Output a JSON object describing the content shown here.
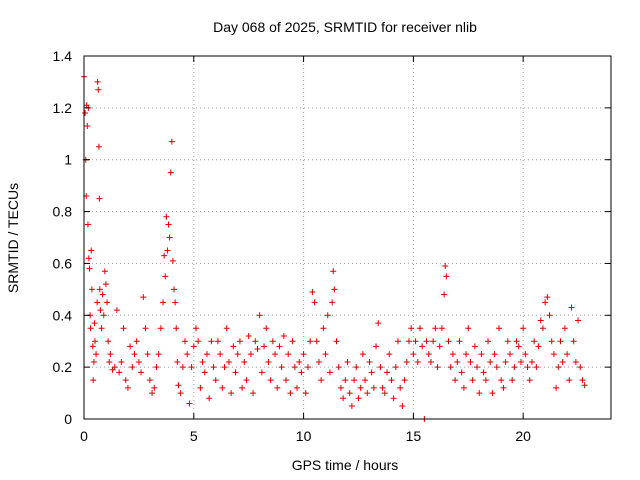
{
  "chart_data": {
    "type": "scatter",
    "title": "Day 068 of 2025, SRMTID for receiver nlib",
    "xlabel": "GPS time / hours",
    "ylabel": "SRMTID / TECUs",
    "xlim": [
      0,
      24
    ],
    "ylim": [
      0,
      1.4
    ],
    "xticks": [
      0,
      5,
      10,
      15,
      20
    ],
    "yticks": [
      0,
      0.2,
      0.4,
      0.6,
      0.8,
      1,
      1.2,
      1.4
    ],
    "xtick_labels": [
      "0",
      "5",
      "10",
      "15",
      "20"
    ],
    "ytick_labels": [
      "0",
      "0.2",
      "0.4",
      "0.6",
      "0.8",
      "1",
      "1.2",
      "1.4"
    ],
    "grid": true,
    "marker": "+",
    "series": [
      {
        "name": "SRMTID",
        "color": "#e00000",
        "points": [
          [
            0.0,
            1.32
          ],
          [
            0.05,
            1.18
          ],
          [
            0.08,
            1.0
          ],
          [
            0.1,
            0.86
          ],
          [
            0.12,
            1.21
          ],
          [
            0.15,
            1.13
          ],
          [
            0.18,
            0.75
          ],
          [
            0.2,
            1.2
          ],
          [
            0.22,
            0.62
          ],
          [
            0.25,
            0.58
          ],
          [
            0.28,
            0.4
          ],
          [
            0.3,
            0.35
          ],
          [
            0.33,
            0.65
          ],
          [
            0.36,
            0.5
          ],
          [
            0.4,
            0.28
          ],
          [
            0.42,
            0.15
          ],
          [
            0.45,
            0.22
          ],
          [
            0.48,
            0.37
          ],
          [
            0.5,
            0.3
          ],
          [
            0.55,
            0.25
          ],
          [
            0.6,
            0.45
          ],
          [
            0.62,
            1.3
          ],
          [
            0.65,
            1.27
          ],
          [
            0.68,
            1.05
          ],
          [
            0.7,
            0.85
          ],
          [
            0.72,
            0.5
          ],
          [
            0.75,
            0.42
          ],
          [
            0.8,
            0.35
          ],
          [
            0.85,
            0.48
          ],
          [
            0.9,
            0.4
          ],
          [
            0.95,
            0.57
          ],
          [
            1.0,
            0.52
          ],
          [
            1.05,
            0.45
          ],
          [
            1.1,
            0.3
          ],
          [
            1.15,
            0.22
          ],
          [
            1.2,
            0.25
          ],
          [
            1.3,
            0.19
          ],
          [
            1.4,
            0.2
          ],
          [
            1.5,
            0.42
          ],
          [
            1.6,
            0.18
          ],
          [
            1.7,
            0.22
          ],
          [
            1.8,
            0.35
          ],
          [
            1.9,
            0.15
          ],
          [
            2.0,
            0.12
          ],
          [
            2.1,
            0.28
          ],
          [
            2.2,
            0.2
          ],
          [
            2.3,
            0.25
          ],
          [
            2.4,
            0.3
          ],
          [
            2.5,
            0.22
          ],
          [
            2.6,
            0.18
          ],
          [
            2.7,
            0.47
          ],
          [
            2.8,
            0.35
          ],
          [
            2.9,
            0.25
          ],
          [
            3.0,
            0.15
          ],
          [
            3.1,
            0.1
          ],
          [
            3.2,
            0.12
          ],
          [
            3.3,
            0.2
          ],
          [
            3.4,
            0.25
          ],
          [
            3.5,
            0.35
          ],
          [
            3.6,
            0.45
          ],
          [
            3.65,
            0.63
          ],
          [
            3.7,
            0.55
          ],
          [
            3.75,
            0.78
          ],
          [
            3.8,
            0.65
          ],
          [
            3.85,
            0.75
          ],
          [
            3.9,
            0.7
          ],
          [
            3.95,
            0.95
          ],
          [
            4.0,
            1.07
          ],
          [
            4.05,
            0.61
          ],
          [
            4.1,
            0.5
          ],
          [
            4.15,
            0.45
          ],
          [
            4.2,
            0.35
          ],
          [
            4.25,
            0.22
          ],
          [
            4.3,
            0.13
          ],
          [
            4.4,
            0.1
          ],
          [
            4.5,
            0.2
          ],
          [
            4.6,
            0.3
          ],
          [
            4.7,
            0.25
          ],
          [
            4.8,
            0.06
          ],
          [
            4.9,
            0.2
          ],
          [
            5.0,
            0.28
          ],
          [
            5.1,
            0.35
          ],
          [
            5.2,
            0.3
          ],
          [
            5.3,
            0.12
          ],
          [
            5.4,
            0.22
          ],
          [
            5.5,
            0.18
          ],
          [
            5.6,
            0.25
          ],
          [
            5.7,
            0.08
          ],
          [
            5.8,
            0.3
          ],
          [
            5.9,
            0.2
          ],
          [
            6.0,
            0.15
          ],
          [
            6.1,
            0.3
          ],
          [
            6.2,
            0.25
          ],
          [
            6.3,
            0.12
          ],
          [
            6.4,
            0.2
          ],
          [
            6.5,
            0.35
          ],
          [
            6.6,
            0.22
          ],
          [
            6.7,
            0.1
          ],
          [
            6.8,
            0.28
          ],
          [
            6.9,
            0.18
          ],
          [
            7.0,
            0.25
          ],
          [
            7.1,
            0.3
          ],
          [
            7.2,
            0.12
          ],
          [
            7.3,
            0.22
          ],
          [
            7.4,
            0.15
          ],
          [
            7.5,
            0.32
          ],
          [
            7.6,
            0.25
          ],
          [
            7.7,
            0.1
          ],
          [
            7.8,
            0.3
          ],
          [
            7.9,
            0.27
          ],
          [
            8.0,
            0.4
          ],
          [
            8.1,
            0.18
          ],
          [
            8.2,
            0.28
          ],
          [
            8.3,
            0.35
          ],
          [
            8.4,
            0.22
          ],
          [
            8.5,
            0.15
          ],
          [
            8.6,
            0.3
          ],
          [
            8.7,
            0.25
          ],
          [
            8.8,
            0.12
          ],
          [
            8.9,
            0.28
          ],
          [
            9.0,
            0.2
          ],
          [
            9.1,
            0.32
          ],
          [
            9.2,
            0.15
          ],
          [
            9.3,
            0.25
          ],
          [
            9.4,
            0.1
          ],
          [
            9.5,
            0.3
          ],
          [
            9.6,
            0.2
          ],
          [
            9.7,
            0.12
          ],
          [
            9.8,
            0.22
          ],
          [
            9.9,
            0.18
          ],
          [
            10.0,
            0.25
          ],
          [
            10.1,
            0.1
          ],
          [
            10.2,
            0.2
          ],
          [
            10.3,
            0.3
          ],
          [
            10.4,
            0.49
          ],
          [
            10.5,
            0.45
          ],
          [
            10.6,
            0.3
          ],
          [
            10.7,
            0.22
          ],
          [
            10.8,
            0.15
          ],
          [
            10.9,
            0.35
          ],
          [
            11.0,
            0.25
          ],
          [
            11.1,
            0.4
          ],
          [
            11.2,
            0.18
          ],
          [
            11.3,
            0.45
          ],
          [
            11.35,
            0.57
          ],
          [
            11.4,
            0.5
          ],
          [
            11.5,
            0.3
          ],
          [
            11.6,
            0.2
          ],
          [
            11.7,
            0.12
          ],
          [
            11.8,
            0.08
          ],
          [
            11.9,
            0.15
          ],
          [
            12.0,
            0.22
          ],
          [
            12.1,
            0.1
          ],
          [
            12.2,
            0.05
          ],
          [
            12.3,
            0.15
          ],
          [
            12.4,
            0.2
          ],
          [
            12.5,
            0.08
          ],
          [
            12.6,
            0.12
          ],
          [
            12.7,
            0.25
          ],
          [
            12.8,
            0.15
          ],
          [
            12.9,
            0.1
          ],
          [
            13.0,
            0.22
          ],
          [
            13.1,
            0.18
          ],
          [
            13.2,
            0.12
          ],
          [
            13.3,
            0.28
          ],
          [
            13.4,
            0.37
          ],
          [
            13.5,
            0.2
          ],
          [
            13.6,
            0.12
          ],
          [
            13.7,
            0.1
          ],
          [
            13.8,
            0.18
          ],
          [
            13.9,
            0.25
          ],
          [
            14.0,
            0.15
          ],
          [
            14.1,
            0.08
          ],
          [
            14.2,
            0.2
          ],
          [
            14.3,
            0.3
          ],
          [
            14.4,
            0.12
          ],
          [
            14.5,
            0.05
          ],
          [
            14.6,
            0.15
          ],
          [
            14.7,
            0.22
          ],
          [
            14.8,
            0.3
          ],
          [
            14.9,
            0.35
          ],
          [
            15.0,
            0.25
          ],
          [
            15.1,
            0.3
          ],
          [
            15.2,
            0.22
          ],
          [
            15.3,
            0.35
          ],
          [
            15.4,
            0.28
          ],
          [
            15.5,
            0.0
          ],
          [
            15.6,
            0.3
          ],
          [
            15.7,
            0.25
          ],
          [
            15.8,
            0.22
          ],
          [
            15.9,
            0.3
          ],
          [
            16.0,
            0.35
          ],
          [
            16.1,
            0.2
          ],
          [
            16.2,
            0.28
          ],
          [
            16.3,
            0.35
          ],
          [
            16.4,
            0.48
          ],
          [
            16.45,
            0.59
          ],
          [
            16.5,
            0.55
          ],
          [
            16.6,
            0.3
          ],
          [
            16.7,
            0.2
          ],
          [
            16.8,
            0.25
          ],
          [
            16.9,
            0.15
          ],
          [
            17.0,
            0.22
          ],
          [
            17.1,
            0.3
          ],
          [
            17.2,
            0.18
          ],
          [
            17.3,
            0.12
          ],
          [
            17.4,
            0.25
          ],
          [
            17.5,
            0.35
          ],
          [
            17.6,
            0.22
          ],
          [
            17.7,
            0.15
          ],
          [
            17.8,
            0.28
          ],
          [
            17.9,
            0.2
          ],
          [
            18.0,
            0.1
          ],
          [
            18.1,
            0.25
          ],
          [
            18.2,
            0.18
          ],
          [
            18.3,
            0.15
          ],
          [
            18.4,
            0.3
          ],
          [
            18.5,
            0.22
          ],
          [
            18.6,
            0.1
          ],
          [
            18.7,
            0.25
          ],
          [
            18.8,
            0.2
          ],
          [
            18.9,
            0.35
          ],
          [
            19.0,
            0.15
          ],
          [
            19.1,
            0.12
          ],
          [
            19.2,
            0.22
          ],
          [
            19.3,
            0.3
          ],
          [
            19.4,
            0.25
          ],
          [
            19.5,
            0.15
          ],
          [
            19.6,
            0.2
          ],
          [
            19.7,
            0.3
          ],
          [
            19.8,
            0.28
          ],
          [
            19.9,
            0.22
          ],
          [
            20.0,
            0.35
          ],
          [
            20.1,
            0.25
          ],
          [
            20.2,
            0.2
          ],
          [
            20.3,
            0.15
          ],
          [
            20.4,
            0.22
          ],
          [
            20.5,
            0.3
          ],
          [
            20.6,
            0.2
          ],
          [
            20.7,
            0.28
          ],
          [
            20.8,
            0.38
          ],
          [
            20.9,
            0.35
          ],
          [
            21.0,
            0.45
          ],
          [
            21.1,
            0.47
          ],
          [
            21.2,
            0.4
          ],
          [
            21.3,
            0.3
          ],
          [
            21.4,
            0.25
          ],
          [
            21.5,
            0.12
          ],
          [
            21.6,
            0.2
          ],
          [
            21.7,
            0.3
          ],
          [
            21.8,
            0.22
          ],
          [
            21.9,
            0.35
          ],
          [
            22.0,
            0.25
          ],
          [
            22.1,
            0.15
          ],
          [
            22.2,
            0.43
          ],
          [
            22.3,
            0.3
          ],
          [
            22.4,
            0.22
          ],
          [
            22.5,
            0.38
          ],
          [
            22.6,
            0.2
          ],
          [
            22.7,
            0.15
          ],
          [
            22.8,
            0.13
          ]
        ]
      }
    ]
  }
}
